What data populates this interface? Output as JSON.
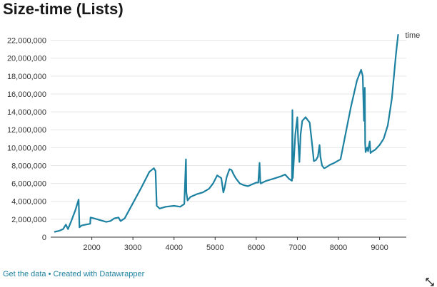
{
  "header": {
    "title": "Size-time (Lists)"
  },
  "footer": {
    "get_data_label": "Get the data",
    "separator": "•",
    "created_with_label": "Created with Datawrapper"
  },
  "colors": {
    "line": "#1d81a2",
    "grid": "#e6e6e6",
    "axis": "#333333",
    "link": "#1d81a2"
  },
  "icons": {
    "resize": "resize-arrows-icon"
  },
  "chart_data": {
    "type": "line",
    "title": "Size-time (Lists)",
    "xlabel": "",
    "ylabel": "",
    "grid": true,
    "xlim": [
      1000,
      9650
    ],
    "ylim": [
      0,
      23000000
    ],
    "x_ticks": [
      2000,
      3000,
      4000,
      5000,
      6000,
      7000,
      8000,
      9000
    ],
    "y_ticks": [
      0,
      2000000,
      4000000,
      6000000,
      8000000,
      10000000,
      12000000,
      14000000,
      16000000,
      18000000,
      20000000,
      22000000
    ],
    "x_tick_labels": [
      "2000",
      "3000",
      "4000",
      "5000",
      "6000",
      "7000",
      "8000",
      "9000"
    ],
    "y_tick_labels": [
      "0",
      "2,000,000",
      "4,000,000",
      "6,000,000",
      "8,000,000",
      "10,000,000",
      "12,000,000",
      "14,000,000",
      "16,000,000",
      "18,000,000",
      "20,000,000",
      "22,000,000"
    ],
    "series": [
      {
        "name": "time",
        "x": [
          1100,
          1200,
          1300,
          1370,
          1420,
          1500,
          1600,
          1680,
          1700,
          1750,
          1850,
          1960,
          1970,
          2050,
          2200,
          2350,
          2450,
          2550,
          2650,
          2700,
          2800,
          3000,
          3200,
          3400,
          3510,
          3550,
          3580,
          3650,
          3800,
          4000,
          4150,
          4250,
          4290,
          4300,
          4330,
          4400,
          4550,
          4700,
          4850,
          4950,
          5050,
          5150,
          5200,
          5230,
          5280,
          5350,
          5400,
          5450,
          5500,
          5600,
          5700,
          5800,
          5900,
          6000,
          6050,
          6080,
          6100,
          6110,
          6150,
          6250,
          6400,
          6600,
          6700,
          6800,
          6870,
          6880,
          6890,
          6920,
          6950,
          7000,
          7020,
          7050,
          7080,
          7120,
          7200,
          7300,
          7360,
          7400,
          7450,
          7500,
          7540,
          7560,
          7600,
          7650,
          7700,
          7800,
          7900,
          8050,
          8150,
          8300,
          8450,
          8550,
          8590,
          8620,
          8640,
          8650,
          8660,
          8680,
          8700,
          8720,
          8740,
          8760,
          8780,
          8800,
          8900,
          9000,
          9100,
          9200,
          9300,
          9400,
          9450
        ],
        "values": [
          600000,
          700000,
          900000,
          1400000,
          900000,
          1800000,
          3000000,
          4200000,
          1100000,
          1300000,
          1400000,
          1500000,
          2200000,
          2100000,
          1900000,
          1700000,
          1800000,
          2100000,
          2200000,
          1800000,
          2100000,
          3800000,
          5500000,
          7300000,
          7700000,
          7400000,
          3500000,
          3200000,
          3400000,
          3500000,
          3400000,
          3700000,
          8700000,
          5000000,
          4100000,
          4500000,
          4800000,
          5000000,
          5400000,
          6000000,
          6900000,
          6600000,
          5000000,
          5500000,
          6700000,
          7600000,
          7500000,
          7000000,
          6600000,
          6000000,
          5800000,
          5700000,
          5900000,
          6100000,
          6100000,
          8300000,
          6100000,
          6000000,
          6100000,
          6300000,
          6500000,
          6800000,
          7000000,
          6500000,
          6300000,
          14200000,
          6600000,
          9000000,
          11500000,
          13400000,
          10800000,
          8400000,
          11500000,
          13000000,
          13400000,
          12800000,
          10300000,
          8500000,
          8600000,
          9000000,
          10300000,
          9000000,
          8000000,
          7700000,
          7800000,
          8100000,
          8300000,
          8700000,
          11000000,
          14500000,
          17500000,
          18700000,
          18000000,
          13000000,
          16700000,
          10500000,
          9500000,
          9800000,
          10000000,
          9600000,
          10200000,
          10700000,
          9400000,
          9500000,
          9800000,
          10300000,
          11000000,
          12500000,
          15500000,
          20500000,
          22600000
        ]
      }
    ]
  }
}
